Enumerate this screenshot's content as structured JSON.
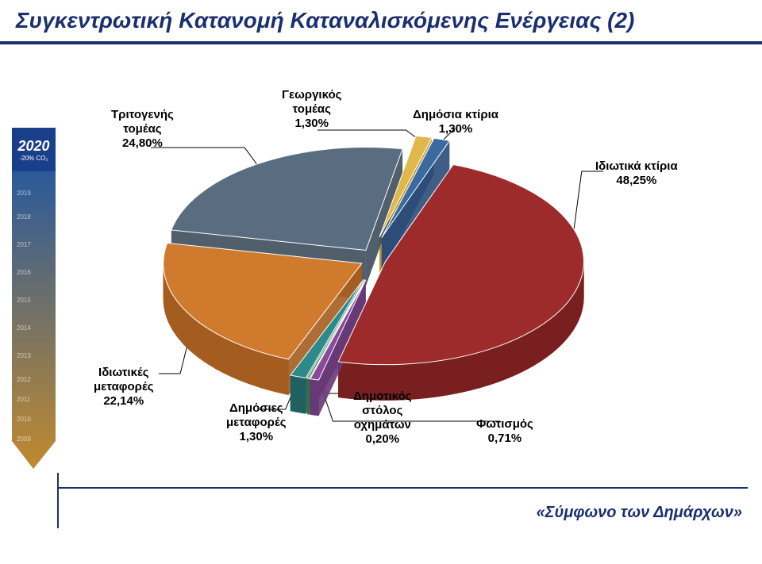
{
  "title": "Συγκεντρωτική Κατανομή Καταναλισκόμενης Ενέργειας (2)",
  "title_color": "#1a2f6f",
  "title_underline_color": "#1a2f6f",
  "sidebar": {
    "top_bg": "#1a3f8a",
    "year_big": "2020",
    "year_sub": "-20% CO₂",
    "gradient_bg": "#c18a2e",
    "years": [
      "2019",
      "2018",
      "2017",
      "2016",
      "2015",
      "2014",
      "2013",
      "2012",
      "2011",
      "2010",
      "2009"
    ]
  },
  "chart": {
    "type": "pie-3d-exploded",
    "background": "#ffffff",
    "slices": [
      {
        "key": "private_buildings",
        "label": "Ιδιωτικά κτίρια",
        "value": 48.25,
        "color": "#9e2b2b",
        "side": "#7a1f1f"
      },
      {
        "key": "tertiary",
        "label": "Τριτογενής τομέας",
        "value": 24.8,
        "color": "#5a6d80",
        "side": "#3e4d5c"
      },
      {
        "key": "private_transport",
        "label": "Ιδιωτικές μεταφορές",
        "value": 22.14,
        "color": "#d07a2e",
        "side": "#a55d1f"
      },
      {
        "key": "agriculture",
        "label": "Γεωργικός τομέας",
        "value": 1.3,
        "color": "#e0b84a",
        "side": "#b8933a"
      },
      {
        "key": "public_buildings",
        "label": "Δημόσια κτίρια",
        "value": 1.3,
        "color": "#3a6aa0",
        "side": "#2a4d78"
      },
      {
        "key": "public_transport",
        "label": "Δημόσιες μεταφορές",
        "value": 1.3,
        "color": "#2e8a8a",
        "side": "#206060"
      },
      {
        "key": "lighting",
        "label": "Φωτισμός",
        "value": 0.71,
        "color": "#8a4a9a",
        "side": "#683878"
      },
      {
        "key": "municipal_fleet",
        "label": "Δημοτικός στόλος οχημάτων",
        "value": 0.2,
        "color": "#4a9a5a",
        "side": "#357040"
      }
    ],
    "label_font_size": 15,
    "label_color": "#000000"
  },
  "labels": {
    "tertiary": {
      "line1": "Τριτογενής",
      "line2": "τομέας",
      "line3": "24,80%"
    },
    "agriculture": {
      "line1": "Γεωργικός",
      "line2": "τομέας",
      "line3": "1,30%"
    },
    "public_buildings": {
      "line1": "Δημόσια κτίρια",
      "line2": "1,30%"
    },
    "private_buildings": {
      "line1": "Ιδιωτικά κτίρια",
      "line2": "48,25%"
    },
    "private_transport": {
      "line1": "Ιδιωτικές",
      "line2": "μεταφορές",
      "line3": "22,14%"
    },
    "public_transport": {
      "line1": "Δημόσιες",
      "line2": "μεταφορές",
      "line3": "1,30%"
    },
    "municipal_fleet": {
      "line1": "Δημοτικός",
      "line2": "στόλος",
      "line3": "οχημάτων",
      "line4": "0,20%"
    },
    "lighting": {
      "line1": "Φωτισμός",
      "line2": "0,71%"
    }
  },
  "footer": {
    "text": "«Σύμφωνο των Δημάρχων»",
    "color": "#1a2f6f",
    "line_color": "#1a2f6f"
  }
}
